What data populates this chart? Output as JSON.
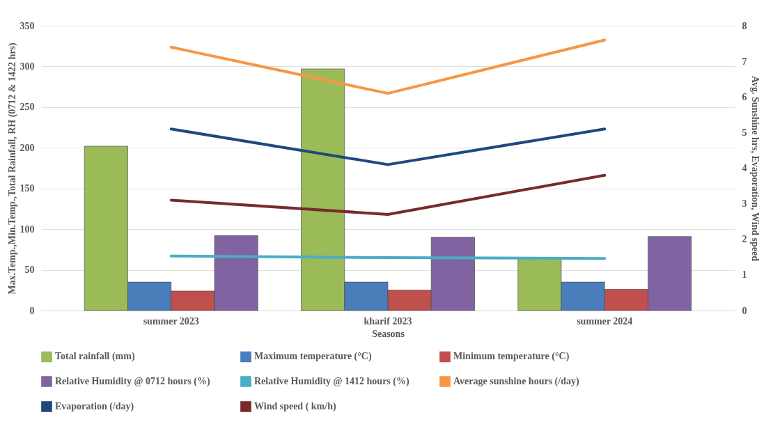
{
  "chart_data": {
    "type": "bar",
    "categories": [
      "summer 2023",
      "kharif 2023",
      "summer 2024"
    ],
    "xlabel": "Seasons",
    "ylabel": "Max.Temp.,Min.Temp.,Total Rainfall, RH (0712 & 1422 hrs)",
    "y2label": "Avg. Sunshine hrs, Evaporation, Wind speed",
    "ylim": [
      0,
      350
    ],
    "yticks": [
      0,
      50,
      100,
      150,
      200,
      250,
      300,
      350
    ],
    "y2lim": [
      0,
      8
    ],
    "y2ticks": [
      0,
      1,
      2,
      3,
      4,
      5,
      6,
      7,
      8
    ],
    "grid": "y",
    "legend": "bottom",
    "marker": "none",
    "line_style": "solid",
    "series": [
      {
        "name": "Total rainfall (mm)",
        "axis": "y",
        "color": "#9bbb59",
        "values": [
          202,
          297,
          65
        ]
      },
      {
        "name": "Maximum temperature (°C)",
        "axis": "y",
        "color": "#4a7ebb",
        "values": [
          35,
          35,
          35
        ]
      },
      {
        "name": "Minimum temperature (°C)",
        "axis": "y",
        "color": "#c0504d",
        "values": [
          24,
          25,
          26
        ]
      },
      {
        "name": "Relative Humidity @ 0712 hours (%)",
        "axis": "y",
        "color": "#8064a2",
        "values": [
          92,
          90,
          91
        ]
      },
      {
        "name": "Relative Humidity @ 1412 hours (%)",
        "type": "line",
        "axis": "y",
        "color": "#4bacc6",
        "values": [
          67,
          65,
          64
        ]
      },
      {
        "name": "Average sunshine hours (/day)",
        "type": "line",
        "axis": "y2",
        "color": "#f79646",
        "values": [
          7.4,
          6.1,
          7.6
        ]
      },
      {
        "name": "Evaporation (/day)",
        "type": "line",
        "axis": "y2",
        "color": "#1f497d",
        "values": [
          5.1,
          4.1,
          5.1
        ]
      },
      {
        "name": "Wind speed ( km/h)",
        "type": "line",
        "axis": "y2",
        "color": "#772c2a",
        "values": [
          3.1,
          2.7,
          3.8
        ]
      }
    ]
  }
}
